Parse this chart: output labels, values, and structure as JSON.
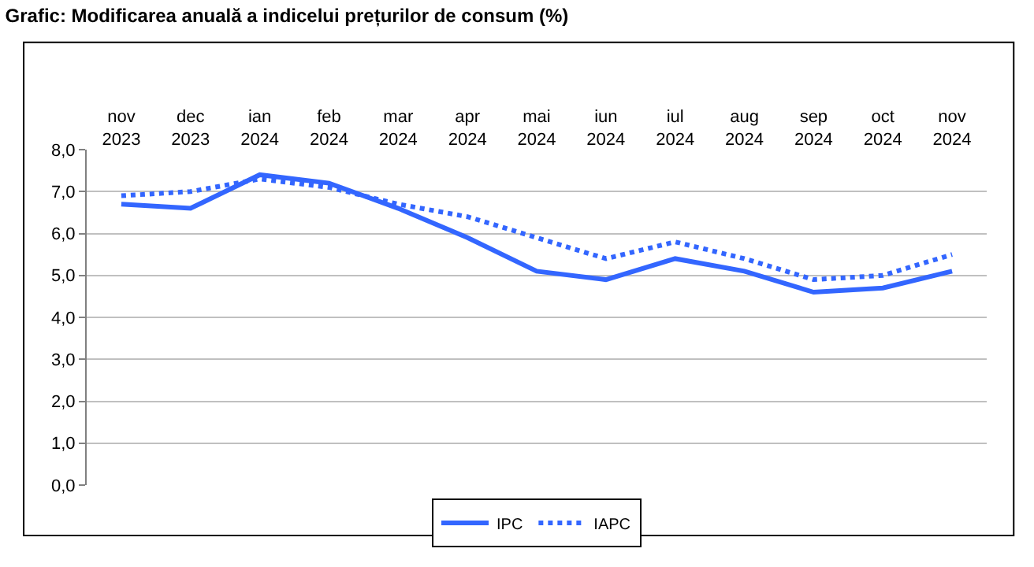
{
  "chart_data": {
    "type": "line",
    "title": "Grafic: Modificarea anuală a indicelui prețurilor de consum (%)",
    "categories": [
      "nov 2023",
      "dec 2023",
      "ian 2024",
      "feb 2024",
      "mar 2024",
      "apr 2024",
      "mai 2024",
      "iun 2024",
      "iul 2024",
      "aug 2024",
      "sep 2024",
      "oct 2024",
      "nov 2024"
    ],
    "series": [
      {
        "name": "IPC",
        "color": "#3366ff",
        "line_style": "solid",
        "values": [
          6.7,
          6.6,
          7.4,
          7.2,
          6.6,
          5.9,
          5.1,
          4.9,
          5.4,
          5.1,
          4.6,
          4.7,
          5.1
        ]
      },
      {
        "name": "IAPC",
        "color": "#3366ff",
        "line_style": "dotted",
        "values": [
          6.9,
          7.0,
          7.3,
          7.1,
          6.7,
          6.4,
          5.9,
          5.4,
          5.8,
          5.4,
          4.9,
          5.0,
          5.5
        ]
      }
    ],
    "ylim": [
      0,
      8
    ],
    "yticks": [
      {
        "value": 0,
        "label": "0,0"
      },
      {
        "value": 1,
        "label": "1,0"
      },
      {
        "value": 2,
        "label": "2,0"
      },
      {
        "value": 3,
        "label": "3,0"
      },
      {
        "value": 4,
        "label": "4,0"
      },
      {
        "value": 5,
        "label": "5,0"
      },
      {
        "value": 6,
        "label": "6,0"
      },
      {
        "value": 7,
        "label": "7,0"
      },
      {
        "value": 8,
        "label": "8,0"
      }
    ],
    "grid": "y",
    "legend": "bottom",
    "marker": "none"
  }
}
